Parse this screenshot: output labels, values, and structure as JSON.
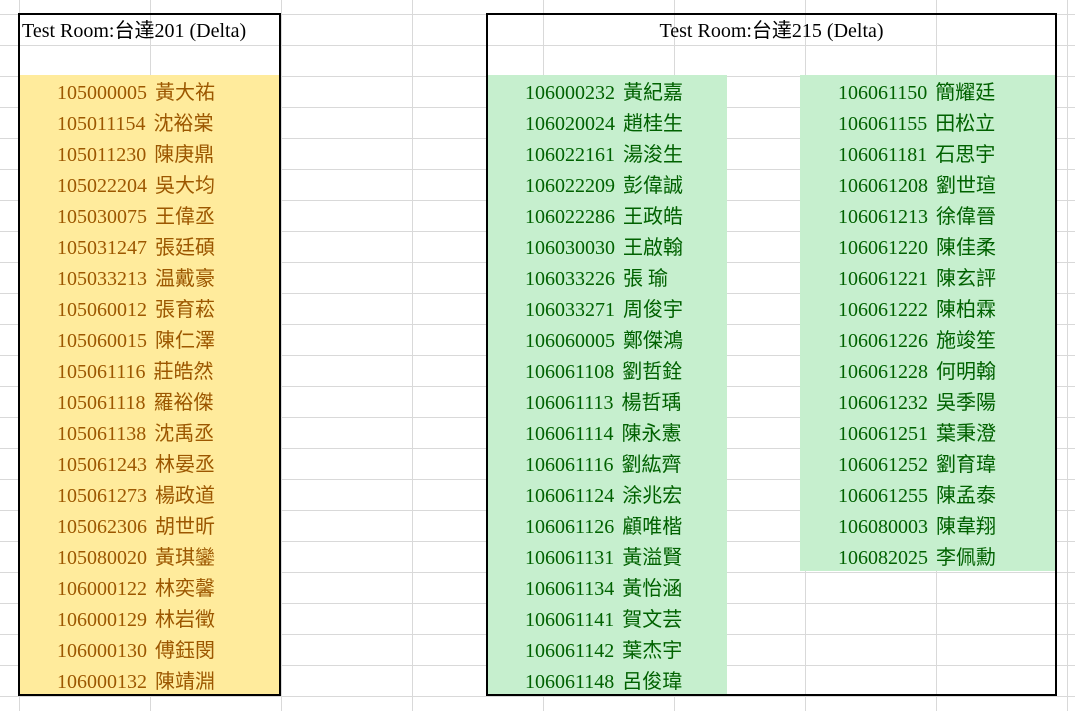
{
  "rooms": [
    {
      "title": "Test Room:台達201 (Delta)",
      "fill_color": "#ffeb9c",
      "text_color": "#9c5700",
      "columns": [
        [
          {
            "id": "105000005",
            "name": "黃大祐"
          },
          {
            "id": "105011154",
            "name": "沈裕棠"
          },
          {
            "id": "105011230",
            "name": "陳庚鼎"
          },
          {
            "id": "105022204",
            "name": "吳大均"
          },
          {
            "id": "105030075",
            "name": "王偉丞"
          },
          {
            "id": "105031247",
            "name": "張廷碩"
          },
          {
            "id": "105033213",
            "name": "温戴豪"
          },
          {
            "id": "105060012",
            "name": "張育菘"
          },
          {
            "id": "105060015",
            "name": "陳仁澤"
          },
          {
            "id": "105061116",
            "name": "莊皓然"
          },
          {
            "id": "105061118",
            "name": "羅裕傑"
          },
          {
            "id": "105061138",
            "name": "沈禹丞"
          },
          {
            "id": "105061243",
            "name": "林晏丞"
          },
          {
            "id": "105061273",
            "name": "楊政道"
          },
          {
            "id": "105062306",
            "name": "胡世昕"
          },
          {
            "id": "105080020",
            "name": "黃琪鑾"
          },
          {
            "id": "106000122",
            "name": "林奕馨"
          },
          {
            "id": "106000129",
            "name": "林岩徵"
          },
          {
            "id": "106000130",
            "name": "傅鈺閔"
          },
          {
            "id": "106000132",
            "name": "陳靖淵"
          }
        ]
      ]
    },
    {
      "title": "Test Room:台達215 (Delta)",
      "fill_color": "#c6efce",
      "text_color": "#006100",
      "columns": [
        [
          {
            "id": "106000232",
            "name": "黃紀嘉"
          },
          {
            "id": "106020024",
            "name": "趙桂生"
          },
          {
            "id": "106022161",
            "name": "湯浚生"
          },
          {
            "id": "106022209",
            "name": "彭偉誠"
          },
          {
            "id": "106022286",
            "name": "王政皓"
          },
          {
            "id": "106030030",
            "name": "王啟翰"
          },
          {
            "id": "106033226",
            "name": "張 瑜"
          },
          {
            "id": "106033271",
            "name": "周俊宇"
          },
          {
            "id": "106060005",
            "name": "鄭傑鴻"
          },
          {
            "id": "106061108",
            "name": "劉哲銓"
          },
          {
            "id": "106061113",
            "name": "楊哲瑀"
          },
          {
            "id": "106061114",
            "name": "陳永憲"
          },
          {
            "id": "106061116",
            "name": "劉紘齊"
          },
          {
            "id": "106061124",
            "name": "涂兆宏"
          },
          {
            "id": "106061126",
            "name": "顧唯楷"
          },
          {
            "id": "106061131",
            "name": "黃溢賢"
          },
          {
            "id": "106061134",
            "name": "黃怡涵"
          },
          {
            "id": "106061141",
            "name": "賀文芸"
          },
          {
            "id": "106061142",
            "name": "葉杰宇"
          },
          {
            "id": "106061148",
            "name": "呂俊瑋"
          }
        ],
        [
          {
            "id": "106061150",
            "name": "簡耀廷"
          },
          {
            "id": "106061155",
            "name": "田松立"
          },
          {
            "id": "106061181",
            "name": "石思宇"
          },
          {
            "id": "106061208",
            "name": "劉世瑄"
          },
          {
            "id": "106061213",
            "name": "徐偉晉"
          },
          {
            "id": "106061220",
            "name": "陳佳柔"
          },
          {
            "id": "106061221",
            "name": "陳玄評"
          },
          {
            "id": "106061222",
            "name": "陳柏霖"
          },
          {
            "id": "106061226",
            "name": "施竣笙"
          },
          {
            "id": "106061228",
            "name": "何明翰"
          },
          {
            "id": "106061232",
            "name": "吳季陽"
          },
          {
            "id": "106061251",
            "name": "葉秉澄"
          },
          {
            "id": "106061252",
            "name": "劉育瑋"
          },
          {
            "id": "106061255",
            "name": "陳孟泰"
          },
          {
            "id": "106080003",
            "name": "陳韋翔"
          },
          {
            "id": "106082025",
            "name": "李佩勳"
          }
        ]
      ]
    }
  ]
}
